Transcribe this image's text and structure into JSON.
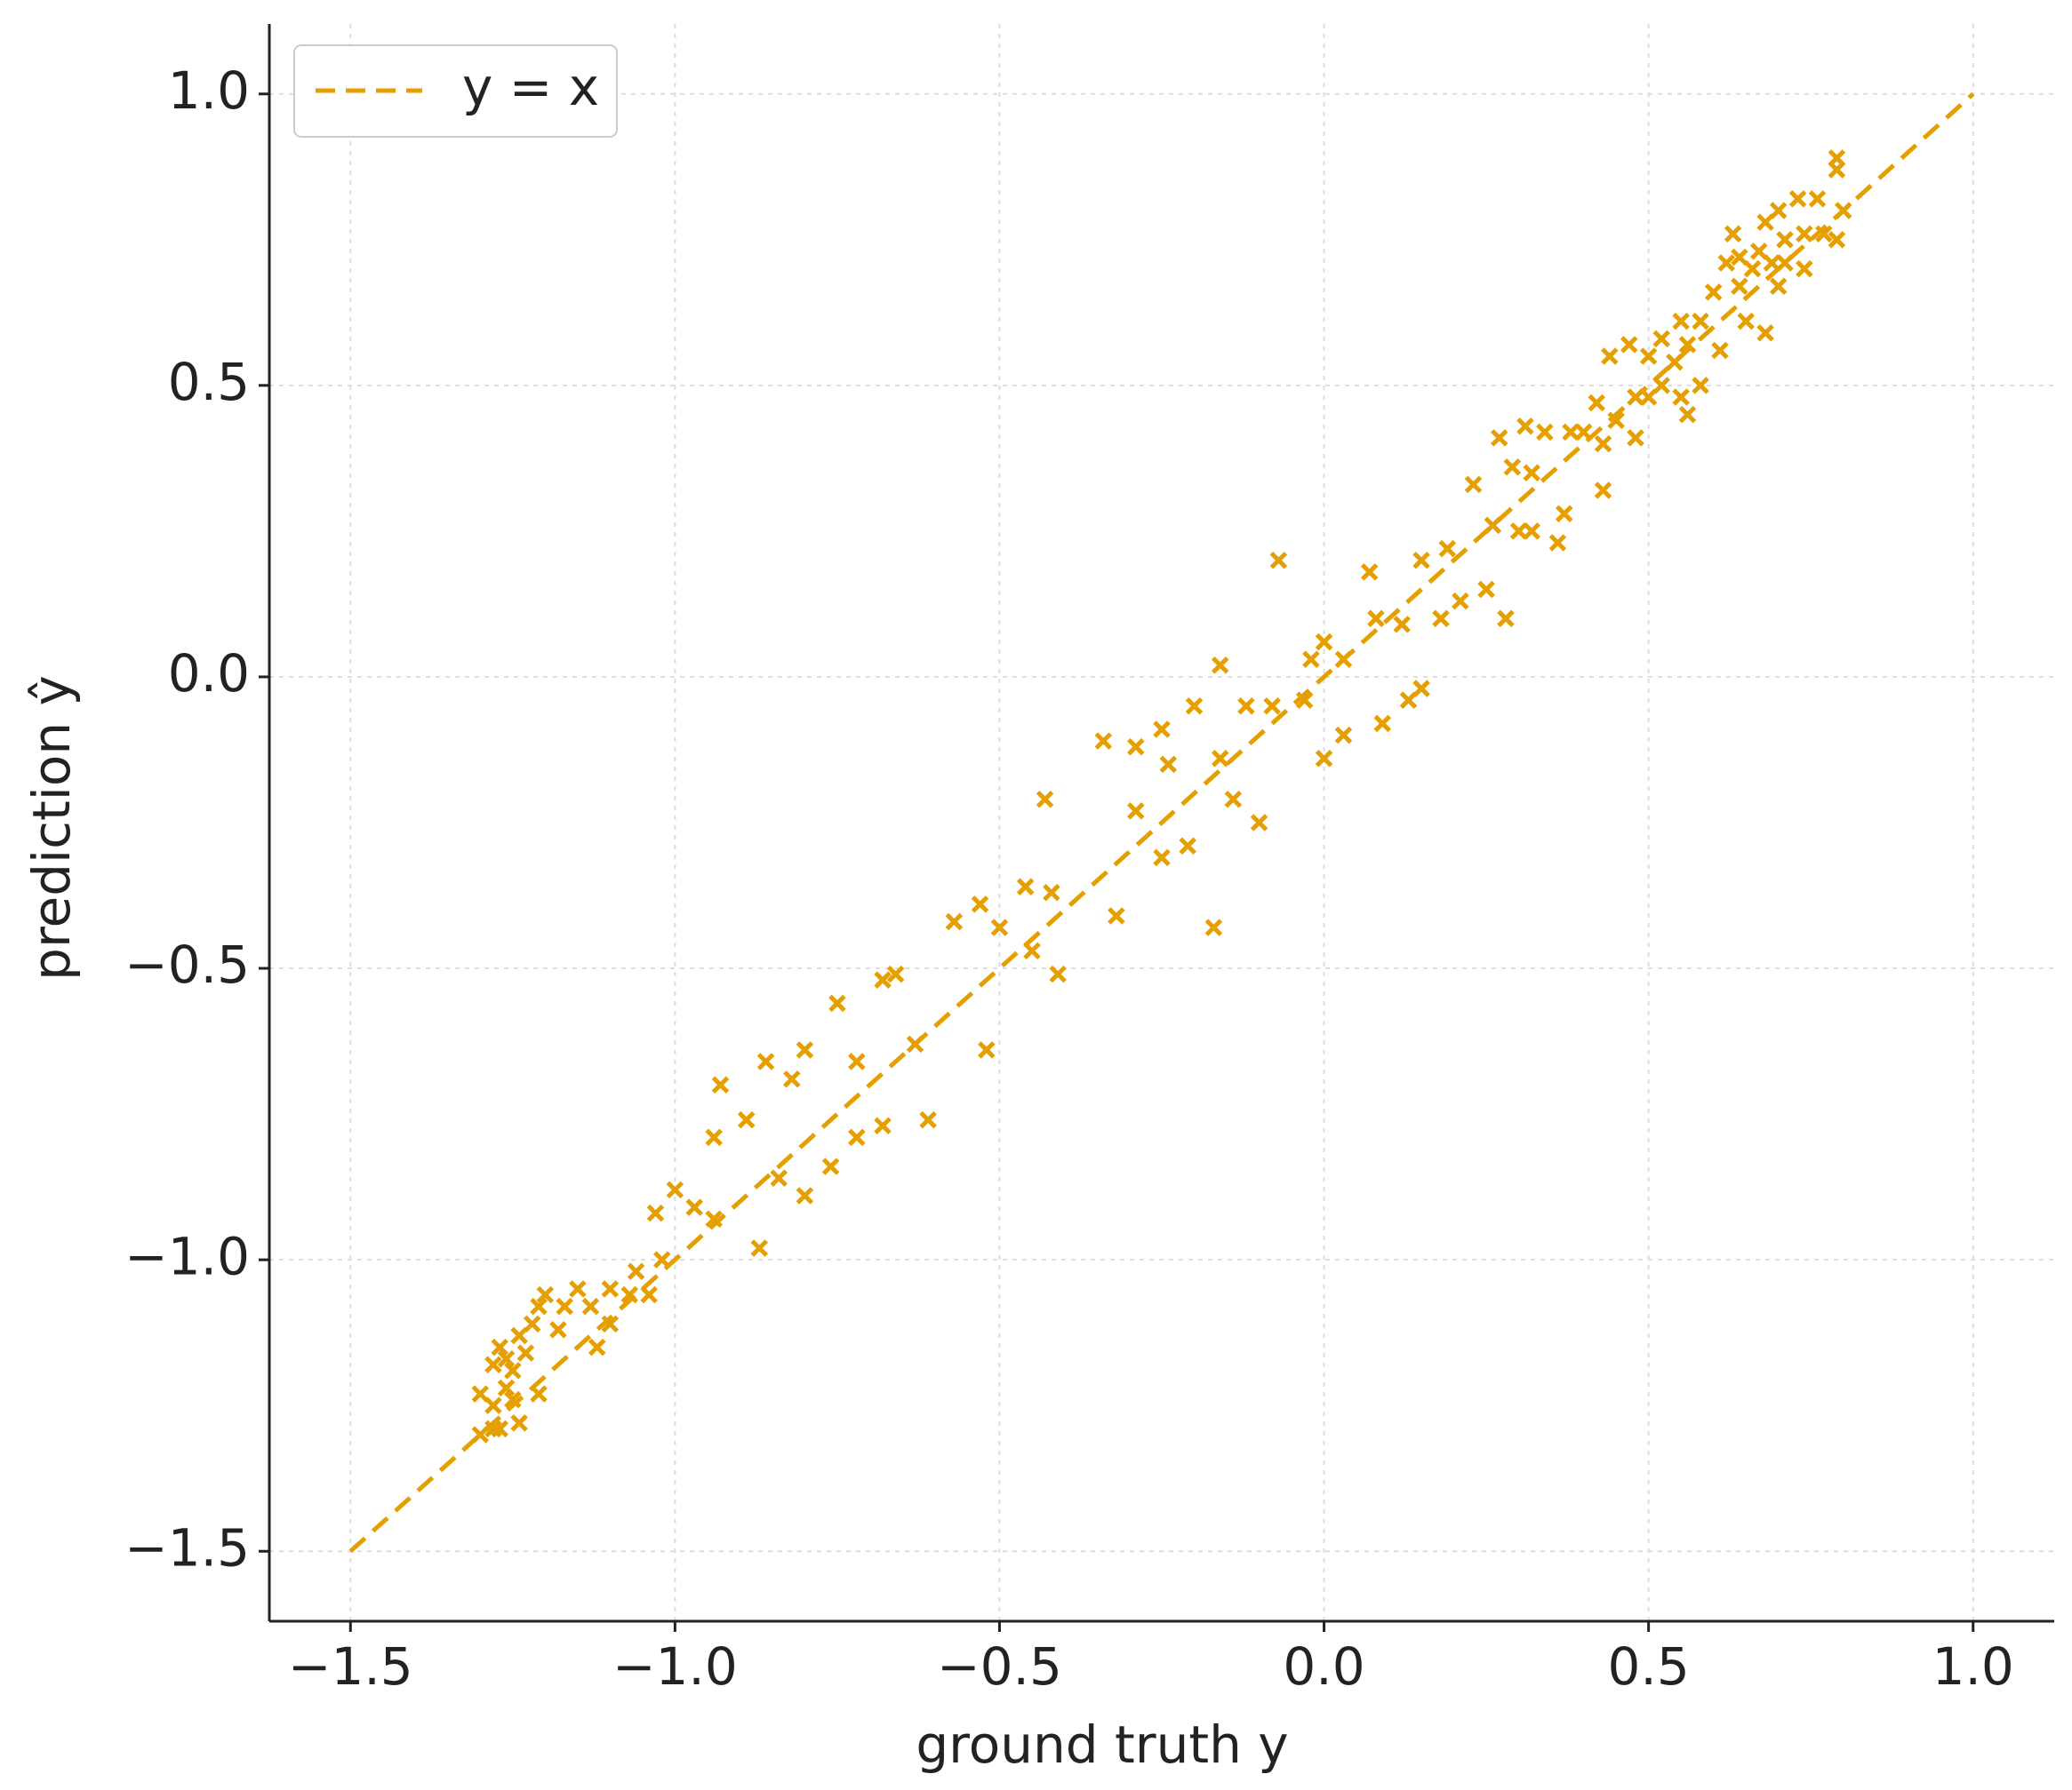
{
  "chart_data": {
    "type": "scatter",
    "x_label": "ground truth y",
    "y_label": "prediction ŷ",
    "xlim": [
      -1.625,
      1.125
    ],
    "ylim": [
      -1.62,
      1.12
    ],
    "xticks": [
      {
        "value": -1.5,
        "label": "−1.5"
      },
      {
        "value": -1.0,
        "label": "−1.0"
      },
      {
        "value": -0.5,
        "label": "−0.5"
      },
      {
        "value": 0,
        "label": "0.0"
      },
      0.5,
      {
        "value": 1.0,
        "label": "1.0"
      }
    ],
    "yticks": [
      {
        "value": -1.5,
        "label": "−1.5"
      },
      {
        "value": -1.0,
        "label": "−1.0"
      },
      {
        "value": -0.5,
        "label": "−0.5"
      },
      {
        "value": 0,
        "label": "0.0"
      },
      0.5,
      {
        "value": 1.0,
        "label": "1.0"
      }
    ],
    "grid": true,
    "legend": "upper left",
    "series": [
      {
        "type": "scatter",
        "color": "#e69f00",
        "x": [
          0.79,
          0.79,
          0.76,
          0.73,
          0.7,
          0.68,
          0.8,
          0.77,
          0.74,
          0.71,
          0.63,
          0.67,
          0.64,
          0.62,
          0.66,
          0.69,
          0.74,
          0.6,
          0.64,
          0.7,
          0.65,
          0.68,
          0.71,
          0.79,
          0.58,
          0.55,
          0.52,
          0.56,
          0.61,
          0.54,
          0.5,
          0.47,
          0.44,
          0.52,
          0.55,
          0.58,
          0.5,
          0.56,
          0.48,
          0.42,
          0.45,
          0.4,
          0.38,
          0.34,
          0.31,
          0.27,
          0.43,
          0.48,
          0.29,
          0.32,
          0.23,
          0.43,
          0.37,
          0.26,
          0.3,
          0.32,
          0.36,
          0.19,
          0.15,
          -0.07,
          0.07,
          0.25,
          0.21,
          0.18,
          0.28,
          0.08,
          0.12,
          0.0,
          0.03,
          -0.02,
          -0.16,
          0.15,
          0.13,
          0.09,
          0.03,
          0.0,
          -0.03,
          -0.08,
          -0.12,
          -0.2,
          -0.25,
          -0.16,
          -0.24,
          -0.29,
          -0.34,
          -0.14,
          -0.43,
          -0.29,
          -0.1,
          -0.21,
          -0.25,
          -0.46,
          -0.42,
          -0.32,
          -0.53,
          -0.57,
          -0.5,
          -0.17,
          -0.45,
          -0.41,
          -0.66,
          -0.68,
          -0.75,
          -0.52,
          -0.63,
          -0.8,
          -0.72,
          -0.86,
          -0.82,
          -0.93,
          -0.89,
          -0.61,
          -0.94,
          -0.68,
          -0.72,
          -0.76,
          -0.84,
          -0.8,
          -1.0,
          -1.03,
          -0.97,
          -0.94,
          -0.87,
          -1.02,
          -1.06,
          -1.04,
          -1.07,
          -1.1,
          -1.15,
          -1.2,
          -1.13,
          -1.17,
          -1.21,
          -1.1,
          -1.22,
          -1.18,
          -1.12,
          -1.24,
          -1.27,
          -1.23,
          -1.26,
          -1.25,
          -1.28,
          -1.21,
          -1.26,
          -1.3,
          -1.28,
          -1.25,
          -1.28,
          -1.24,
          -1.3,
          -1.27
        ],
        "values": [
          0.89,
          0.87,
          0.82,
          0.82,
          0.8,
          0.78,
          0.8,
          0.76,
          0.76,
          0.75,
          0.76,
          0.73,
          0.72,
          0.71,
          0.7,
          0.71,
          0.7,
          0.66,
          0.67,
          0.67,
          0.61,
          0.59,
          0.71,
          0.75,
          0.61,
          0.61,
          0.58,
          0.57,
          0.56,
          0.54,
          0.55,
          0.57,
          0.55,
          0.5,
          0.48,
          0.5,
          0.48,
          0.45,
          0.48,
          0.47,
          0.44,
          0.42,
          0.42,
          0.42,
          0.43,
          0.41,
          0.4,
          0.41,
          0.36,
          0.35,
          0.33,
          0.32,
          0.28,
          0.26,
          0.25,
          0.25,
          0.23,
          0.22,
          0.2,
          0.2,
          0.18,
          0.15,
          0.13,
          0.1,
          0.1,
          0.1,
          0.09,
          0.06,
          0.03,
          0.03,
          0.02,
          -0.02,
          -0.04,
          -0.08,
          -0.1,
          -0.14,
          -0.04,
          -0.05,
          -0.05,
          -0.05,
          -0.09,
          -0.14,
          -0.15,
          -0.12,
          -0.11,
          -0.21,
          -0.21,
          -0.23,
          -0.25,
          -0.29,
          -0.31,
          -0.36,
          -0.37,
          -0.41,
          -0.39,
          -0.42,
          -0.43,
          -0.43,
          -0.47,
          -0.51,
          -0.51,
          -0.52,
          -0.56,
          -0.64,
          -0.63,
          -0.64,
          -0.66,
          -0.66,
          -0.69,
          -0.7,
          -0.76,
          -0.76,
          -0.79,
          -0.77,
          -0.79,
          -0.84,
          -0.86,
          -0.89,
          -0.88,
          -0.92,
          -0.91,
          -0.93,
          -0.98,
          -1.0,
          -1.02,
          -1.06,
          -1.06,
          -1.05,
          -1.05,
          -1.06,
          -1.08,
          -1.08,
          -1.08,
          -1.11,
          -1.11,
          -1.12,
          -1.15,
          -1.13,
          -1.15,
          -1.16,
          -1.17,
          -1.19,
          -1.18,
          -1.23,
          -1.22,
          -1.23,
          -1.25,
          -1.24,
          -1.29,
          -1.28,
          -1.3,
          -1.29
        ]
      },
      {
        "type": "line",
        "name": "y = x",
        "color": "#e69f00",
        "dashed": true,
        "x": [
          -1.5,
          1.0
        ],
        "values": [
          -1.5,
          1.0
        ]
      }
    ]
  }
}
